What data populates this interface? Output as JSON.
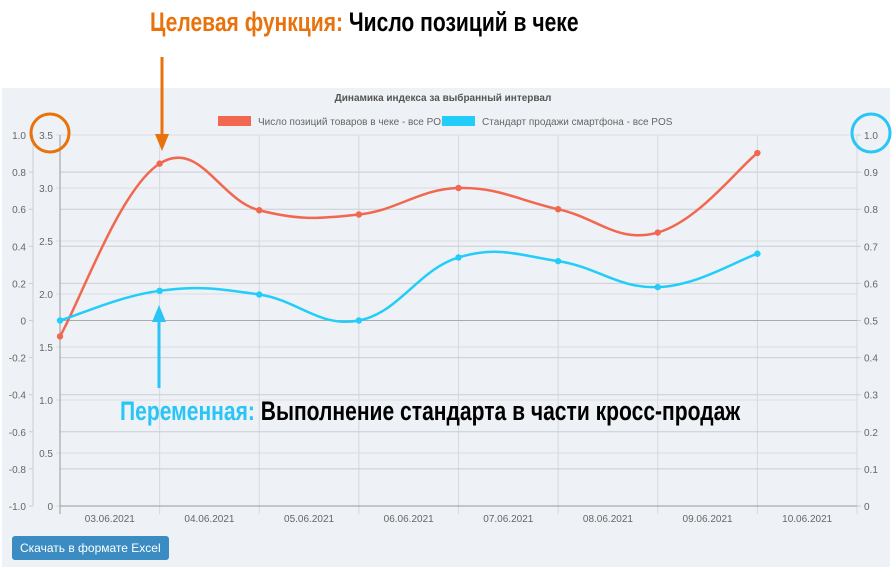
{
  "annotations": {
    "target_label": "Целевая функция:",
    "target_value": "Число позиций в чеке",
    "variable_label": "Переменная:",
    "variable_value": "Выполнение стандарта в части кросс-продаж",
    "target_color": "#e8730c",
    "variable_color": "#29c5f6"
  },
  "chart_data": {
    "type": "line",
    "title": "Динамика индекса за выбранный интервал",
    "categories": [
      "03.06.2021",
      "04.06.2021",
      "05.06.2021",
      "06.06.2021",
      "07.06.2021",
      "08.06.2021",
      "09.06.2021",
      "10.06.2021"
    ],
    "legend_placement": "top",
    "grid": true,
    "series": [
      {
        "name": "Число позиций товаров в чеке - все POS",
        "color": "#f2674f",
        "axis": "left-inner",
        "values": [
          1.6,
          3.23,
          2.79,
          2.75,
          3.0,
          2.8,
          2.58,
          3.33
        ]
      },
      {
        "name": "Стандарт продажи смартфона - все POS",
        "color": "#22cdf9",
        "axis": "right",
        "values": [
          0.5,
          0.58,
          0.57,
          0.5,
          0.67,
          0.66,
          0.59,
          0.68
        ]
      }
    ],
    "axes": {
      "left_outer": {
        "ylim": [
          -1.0,
          1.0
        ],
        "ticks": [
          "1.0",
          "0.8",
          "0.6",
          "0.4",
          "0.2",
          "0",
          "-0.2",
          "-0.4",
          "-0.6",
          "-0.8",
          "-1.0"
        ]
      },
      "left_inner": {
        "ylim": [
          0,
          3.5
        ],
        "ticks": [
          "3.5",
          "3.0",
          "2.5",
          "2.0",
          "1.5",
          "1.0",
          "0.5",
          "0"
        ]
      },
      "right": {
        "ylim": [
          0,
          1.0
        ],
        "ticks": [
          "1.0",
          "0.9",
          "0.8",
          "0.7",
          "0.6",
          "0.5",
          "0.4",
          "0.3",
          "0.2",
          "0.1",
          "0"
        ]
      }
    }
  },
  "toolbar": {
    "export_label": "Скачать в формате Excel"
  }
}
